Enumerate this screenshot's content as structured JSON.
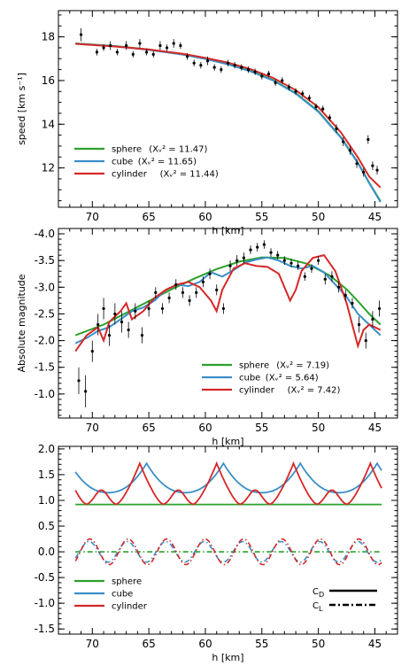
{
  "chart_data": [
    {
      "id": "speed",
      "type": "scatter",
      "xlabel": "h [km]",
      "ylabel": "speed [km s⁻¹]",
      "xlim": [
        73,
        43
      ],
      "ylim": [
        10.2,
        19.2
      ],
      "xticks": [
        70,
        65,
        60,
        55,
        50,
        45
      ],
      "yticks": [
        12,
        14,
        16,
        18
      ],
      "legend_position": "bottom-left",
      "observations": {
        "h": [
          71.0,
          69.6,
          69.0,
          68.4,
          67.8,
          67.0,
          66.4,
          65.8,
          65.2,
          64.6,
          64.0,
          63.4,
          62.8,
          62.2,
          61.6,
          61.0,
          60.4,
          59.8,
          59.2,
          58.6,
          58.0,
          57.4,
          56.8,
          56.2,
          55.6,
          55.0,
          54.4,
          53.8,
          53.2,
          52.6,
          52.0,
          51.4,
          50.8,
          50.2,
          49.6,
          49.0,
          48.4,
          47.8,
          47.2,
          46.6,
          46.0,
          45.6,
          45.2,
          44.8
        ],
        "v": [
          18.1,
          17.3,
          17.5,
          17.6,
          17.3,
          17.6,
          17.2,
          17.7,
          17.3,
          17.2,
          17.6,
          17.5,
          17.7,
          17.6,
          17.1,
          16.8,
          16.7,
          16.9,
          16.6,
          16.5,
          16.8,
          16.7,
          16.6,
          16.5,
          16.4,
          16.2,
          16.3,
          15.9,
          16.0,
          15.7,
          15.5,
          15.4,
          15.2,
          14.8,
          14.7,
          14.3,
          13.8,
          13.2,
          12.8,
          12.2,
          11.8,
          13.3,
          12.1,
          11.9
        ],
        "err": [
          0.3,
          0.15,
          0.15,
          0.2,
          0.15,
          0.2,
          0.15,
          0.2,
          0.15,
          0.15,
          0.2,
          0.15,
          0.2,
          0.15,
          0.15,
          0.15,
          0.15,
          0.2,
          0.15,
          0.15,
          0.15,
          0.15,
          0.15,
          0.15,
          0.15,
          0.15,
          0.15,
          0.15,
          0.15,
          0.15,
          0.15,
          0.15,
          0.15,
          0.15,
          0.15,
          0.15,
          0.2,
          0.2,
          0.2,
          0.2,
          0.2,
          0.2,
          0.2,
          0.2
        ]
      },
      "series": [
        {
          "name": "sphere",
          "chi_label": "(Xᵥ² = 11.47)",
          "color": "#2ca02c",
          "h": [
            71.5,
            68,
            65,
            62,
            60,
            58,
            56,
            54,
            52,
            50,
            48,
            46.5,
            45.5,
            44.5
          ],
          "v": [
            17.7,
            17.58,
            17.42,
            17.2,
            17.0,
            16.76,
            16.44,
            16.02,
            15.42,
            14.6,
            13.4,
            12.24,
            11.32,
            10.48
          ]
        },
        {
          "name": "cube",
          "chi_label": "(Xᵥ² = 11.65)",
          "color": "#3a8fc7",
          "h": [
            71.5,
            68,
            65,
            62,
            60,
            58,
            56,
            54,
            52,
            50,
            48,
            46.5,
            45.5,
            44.5
          ],
          "v": [
            17.69,
            17.57,
            17.41,
            17.19,
            16.99,
            16.74,
            16.42,
            16.0,
            15.4,
            14.57,
            13.38,
            12.22,
            11.3,
            10.44
          ]
        },
        {
          "name": "cylinder",
          "chi_label": "(Xᵥ² = 11.44)",
          "color": "#d62728",
          "h": [
            71.5,
            68,
            65,
            62,
            60,
            58,
            56,
            54,
            52,
            50,
            48,
            46.5,
            45.5,
            44.5
          ],
          "v": [
            17.68,
            17.56,
            17.42,
            17.22,
            17.04,
            16.82,
            16.52,
            16.12,
            15.56,
            14.78,
            13.62,
            12.48,
            11.6,
            11.1
          ]
        }
      ]
    },
    {
      "id": "magnitude",
      "type": "scatter",
      "xlabel": "h [km]",
      "ylabel": "Absolute magnitude",
      "xlim": [
        73,
        43
      ],
      "ylim": [
        -0.55,
        -4.1
      ],
      "xticks": [
        70,
        65,
        60,
        55,
        50,
        45
      ],
      "yticks": [
        -1.0,
        -1.5,
        -2.0,
        -2.5,
        -3.0,
        -3.5,
        -4.0
      ],
      "ytick_labels": [
        "-1.0",
        "-1.5",
        "-2.0",
        "-2.5",
        "-3.0",
        "-3.5",
        "-4.0"
      ],
      "legend_position": "bottom-right",
      "observations": {
        "h": [
          71.2,
          70.6,
          70.0,
          69.5,
          69.0,
          68.5,
          68.0,
          67.4,
          66.8,
          66.2,
          65.6,
          65.0,
          64.4,
          63.8,
          63.2,
          62.6,
          62.0,
          61.4,
          60.8,
          60.2,
          59.6,
          59.0,
          58.4,
          57.8,
          57.2,
          56.6,
          56.0,
          55.4,
          54.8,
          54.2,
          53.6,
          53.0,
          52.4,
          51.8,
          51.2,
          50.6,
          50.0,
          49.4,
          48.8,
          48.2,
          47.6,
          47.0,
          46.4,
          45.8,
          45.2,
          44.6
        ],
        "m": [
          -1.25,
          -1.05,
          -1.8,
          -2.3,
          -2.6,
          -2.1,
          -2.5,
          -2.35,
          -2.2,
          -2.55,
          -2.1,
          -2.6,
          -2.9,
          -2.6,
          -2.8,
          -3.05,
          -2.9,
          -2.75,
          -2.9,
          -3.1,
          -3.25,
          -2.95,
          -2.6,
          -3.4,
          -3.5,
          -3.55,
          -3.7,
          -3.75,
          -3.8,
          -3.65,
          -3.6,
          -3.5,
          -3.45,
          -3.4,
          -3.2,
          -3.35,
          -3.5,
          -3.15,
          -3.2,
          -3.0,
          -2.85,
          -2.7,
          -2.3,
          -2.0,
          -2.4,
          -2.6
        ],
        "err": [
          0.25,
          0.3,
          0.2,
          0.2,
          0.2,
          0.2,
          0.2,
          0.2,
          0.15,
          0.15,
          0.15,
          0.15,
          0.1,
          0.1,
          0.1,
          0.1,
          0.1,
          0.1,
          0.1,
          0.1,
          0.1,
          0.1,
          0.1,
          0.1,
          0.1,
          0.1,
          0.08,
          0.08,
          0.08,
          0.08,
          0.08,
          0.08,
          0.08,
          0.08,
          0.08,
          0.08,
          0.08,
          0.1,
          0.1,
          0.1,
          0.1,
          0.1,
          0.15,
          0.15,
          0.15,
          0.15
        ]
      },
      "series": [
        {
          "name": "sphere",
          "chi_label": "(Xᵥ² = 7.19)",
          "color": "#2ca02c",
          "h": [
            71.5,
            69,
            67,
            65,
            63,
            61,
            59,
            57,
            55,
            53,
            51,
            49,
            47.5,
            46.5,
            45.5,
            44.5
          ],
          "m": [
            -2.1,
            -2.3,
            -2.52,
            -2.74,
            -2.96,
            -3.16,
            -3.34,
            -3.48,
            -3.56,
            -3.55,
            -3.44,
            -3.22,
            -2.96,
            -2.74,
            -2.5,
            -2.3
          ]
        },
        {
          "name": "cube",
          "chi_label": "(Xᵥ² = 5.64)",
          "color": "#3a8fc7",
          "h": [
            71.5,
            70.5,
            69.5,
            68.5,
            67.5,
            66.5,
            65.5,
            64.5,
            63.5,
            62.5,
            61.5,
            60.5,
            59.5,
            58.5,
            57.5,
            56.5,
            55.5,
            54.5,
            53.5,
            52.5,
            51.5,
            50.5,
            49.5,
            48.5,
            47.5,
            46.5,
            45.5,
            44.5
          ],
          "m": [
            -1.95,
            -2.05,
            -2.18,
            -2.25,
            -2.4,
            -2.55,
            -2.62,
            -2.75,
            -2.95,
            -3.05,
            -3.02,
            -3.1,
            -3.28,
            -3.2,
            -3.32,
            -3.46,
            -3.52,
            -3.56,
            -3.5,
            -3.4,
            -3.35,
            -3.4,
            -3.28,
            -3.05,
            -2.82,
            -2.5,
            -2.3,
            -2.1
          ]
        },
        {
          "name": "cylinder",
          "chi_label": "(Xᵥ² = 7.42)",
          "color": "#d62728",
          "h": [
            71.5,
            70.5,
            69.5,
            69.0,
            68.5,
            67.5,
            67.0,
            66.5,
            65.5,
            64.5,
            63.5,
            62.5,
            61.5,
            60.5,
            59.5,
            59.0,
            58.5,
            57.5,
            56.5,
            55.5,
            54.5,
            53.5,
            53.0,
            52.5,
            52.0,
            51.5,
            50.5,
            49.5,
            48.5,
            47.5,
            47.0,
            46.5,
            46.0,
            45.5,
            44.5
          ],
          "m": [
            -1.8,
            -2.1,
            -2.25,
            -2.0,
            -2.35,
            -2.55,
            -2.7,
            -2.4,
            -2.55,
            -2.8,
            -2.95,
            -3.05,
            -3.1,
            -3.0,
            -2.75,
            -2.55,
            -2.95,
            -3.35,
            -3.45,
            -3.4,
            -3.38,
            -3.25,
            -3.0,
            -2.75,
            -2.95,
            -3.3,
            -3.55,
            -3.6,
            -3.3,
            -2.7,
            -2.3,
            -1.9,
            -2.2,
            -2.3,
            -2.2
          ]
        }
      ]
    },
    {
      "id": "coefficients",
      "type": "line",
      "xlabel": "h [km]",
      "ylabel": "",
      "xlim": [
        73,
        43
      ],
      "ylim": [
        -1.6,
        2.05
      ],
      "xticks": [
        70,
        65,
        60,
        55,
        50,
        45
      ],
      "yticks": [
        -1.5,
        -1.0,
        -0.5,
        0.0,
        0.5,
        1.0,
        1.5,
        2.0
      ],
      "ytick_labels": [
        "-1.5",
        "-1.0",
        "-0.5",
        "0.0",
        "0.5",
        "1.0",
        "1.5",
        "2.0"
      ],
      "legend_position": "bottom-left",
      "linestyle_legend": [
        {
          "label": "C",
          "subscript": "D",
          "style": "solid"
        },
        {
          "label": "C",
          "subscript": "L",
          "style": "dash-dot"
        }
      ],
      "series": [
        {
          "name": "sphere",
          "color": "#2ca02c",
          "CD_constant": 0.92,
          "CL_constant": 0.0
        },
        {
          "name": "cube",
          "color": "#3a8fc7",
          "CD_peaks_h": [
            72.0,
            65.8,
            59.0,
            52.2,
            46.0
          ],
          "CD_peak": 1.72,
          "CD_trough": 1.15,
          "CL_amplitude": 0.2,
          "CL_phase_h": 72.0
        },
        {
          "name": "cylinder",
          "color": "#d62728",
          "CD_peaks_h": [
            65.8,
            59.0,
            52.2,
            46.4
          ],
          "CD_peak": 1.72,
          "CD_trough": 0.9,
          "CD_mid_peak": 1.2,
          "CL_amplitude": 0.25,
          "CL_phase_h": 70.0
        }
      ]
    }
  ]
}
